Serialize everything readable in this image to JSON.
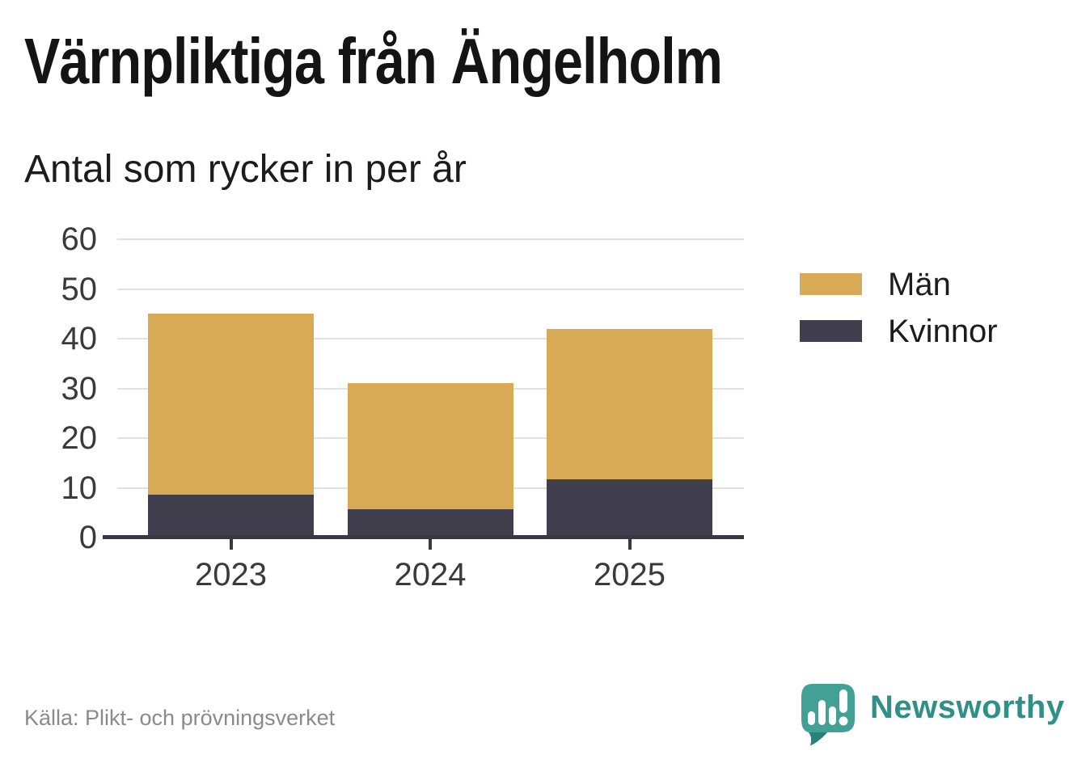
{
  "header": {
    "title": "Värnpliktiga från Ängelholm",
    "subtitle": "Antal som rycker in per år"
  },
  "chart_data": {
    "type": "bar",
    "stacked": true,
    "title": "Värnpliktiga från Ängelholm",
    "subtitle": "Antal som rycker in per år",
    "categories": [
      "2023",
      "2024",
      "2025"
    ],
    "series": [
      {
        "name": "Män",
        "color": "#d9aa55",
        "values": [
          36,
          25,
          30
        ]
      },
      {
        "name": "Kvinnor",
        "color": "#413f4e",
        "values": [
          9,
          6,
          12
        ]
      }
    ],
    "stack_totals": [
      45,
      31,
      42
    ],
    "stack_order_bottom_to_top": [
      "Kvinnor",
      "Män"
    ],
    "ylim": [
      0,
      60
    ],
    "yticks": [
      0,
      10,
      20,
      30,
      40,
      50,
      60
    ],
    "xlabel": "",
    "ylabel": "",
    "grid": "horizontal-light",
    "legend_position": "right"
  },
  "footer": {
    "source": "Källa: Plikt- och prövningsverket",
    "brand": "Newsworthy"
  },
  "colors": {
    "background": "#ffffff",
    "axis": "#3a3943",
    "gridline": "#e1e1e1",
    "tick_label": "#3a3a3a",
    "legend_text": "#1c1c1c",
    "source_text": "#8a8a8a",
    "bar_men": "#d9aa55",
    "bar_women": "#413f4e",
    "brand_teal": "#43a095",
    "brand_teal_dark": "#27807a",
    "brand_text": "#2f9087",
    "icon_white": "#ffffff"
  }
}
